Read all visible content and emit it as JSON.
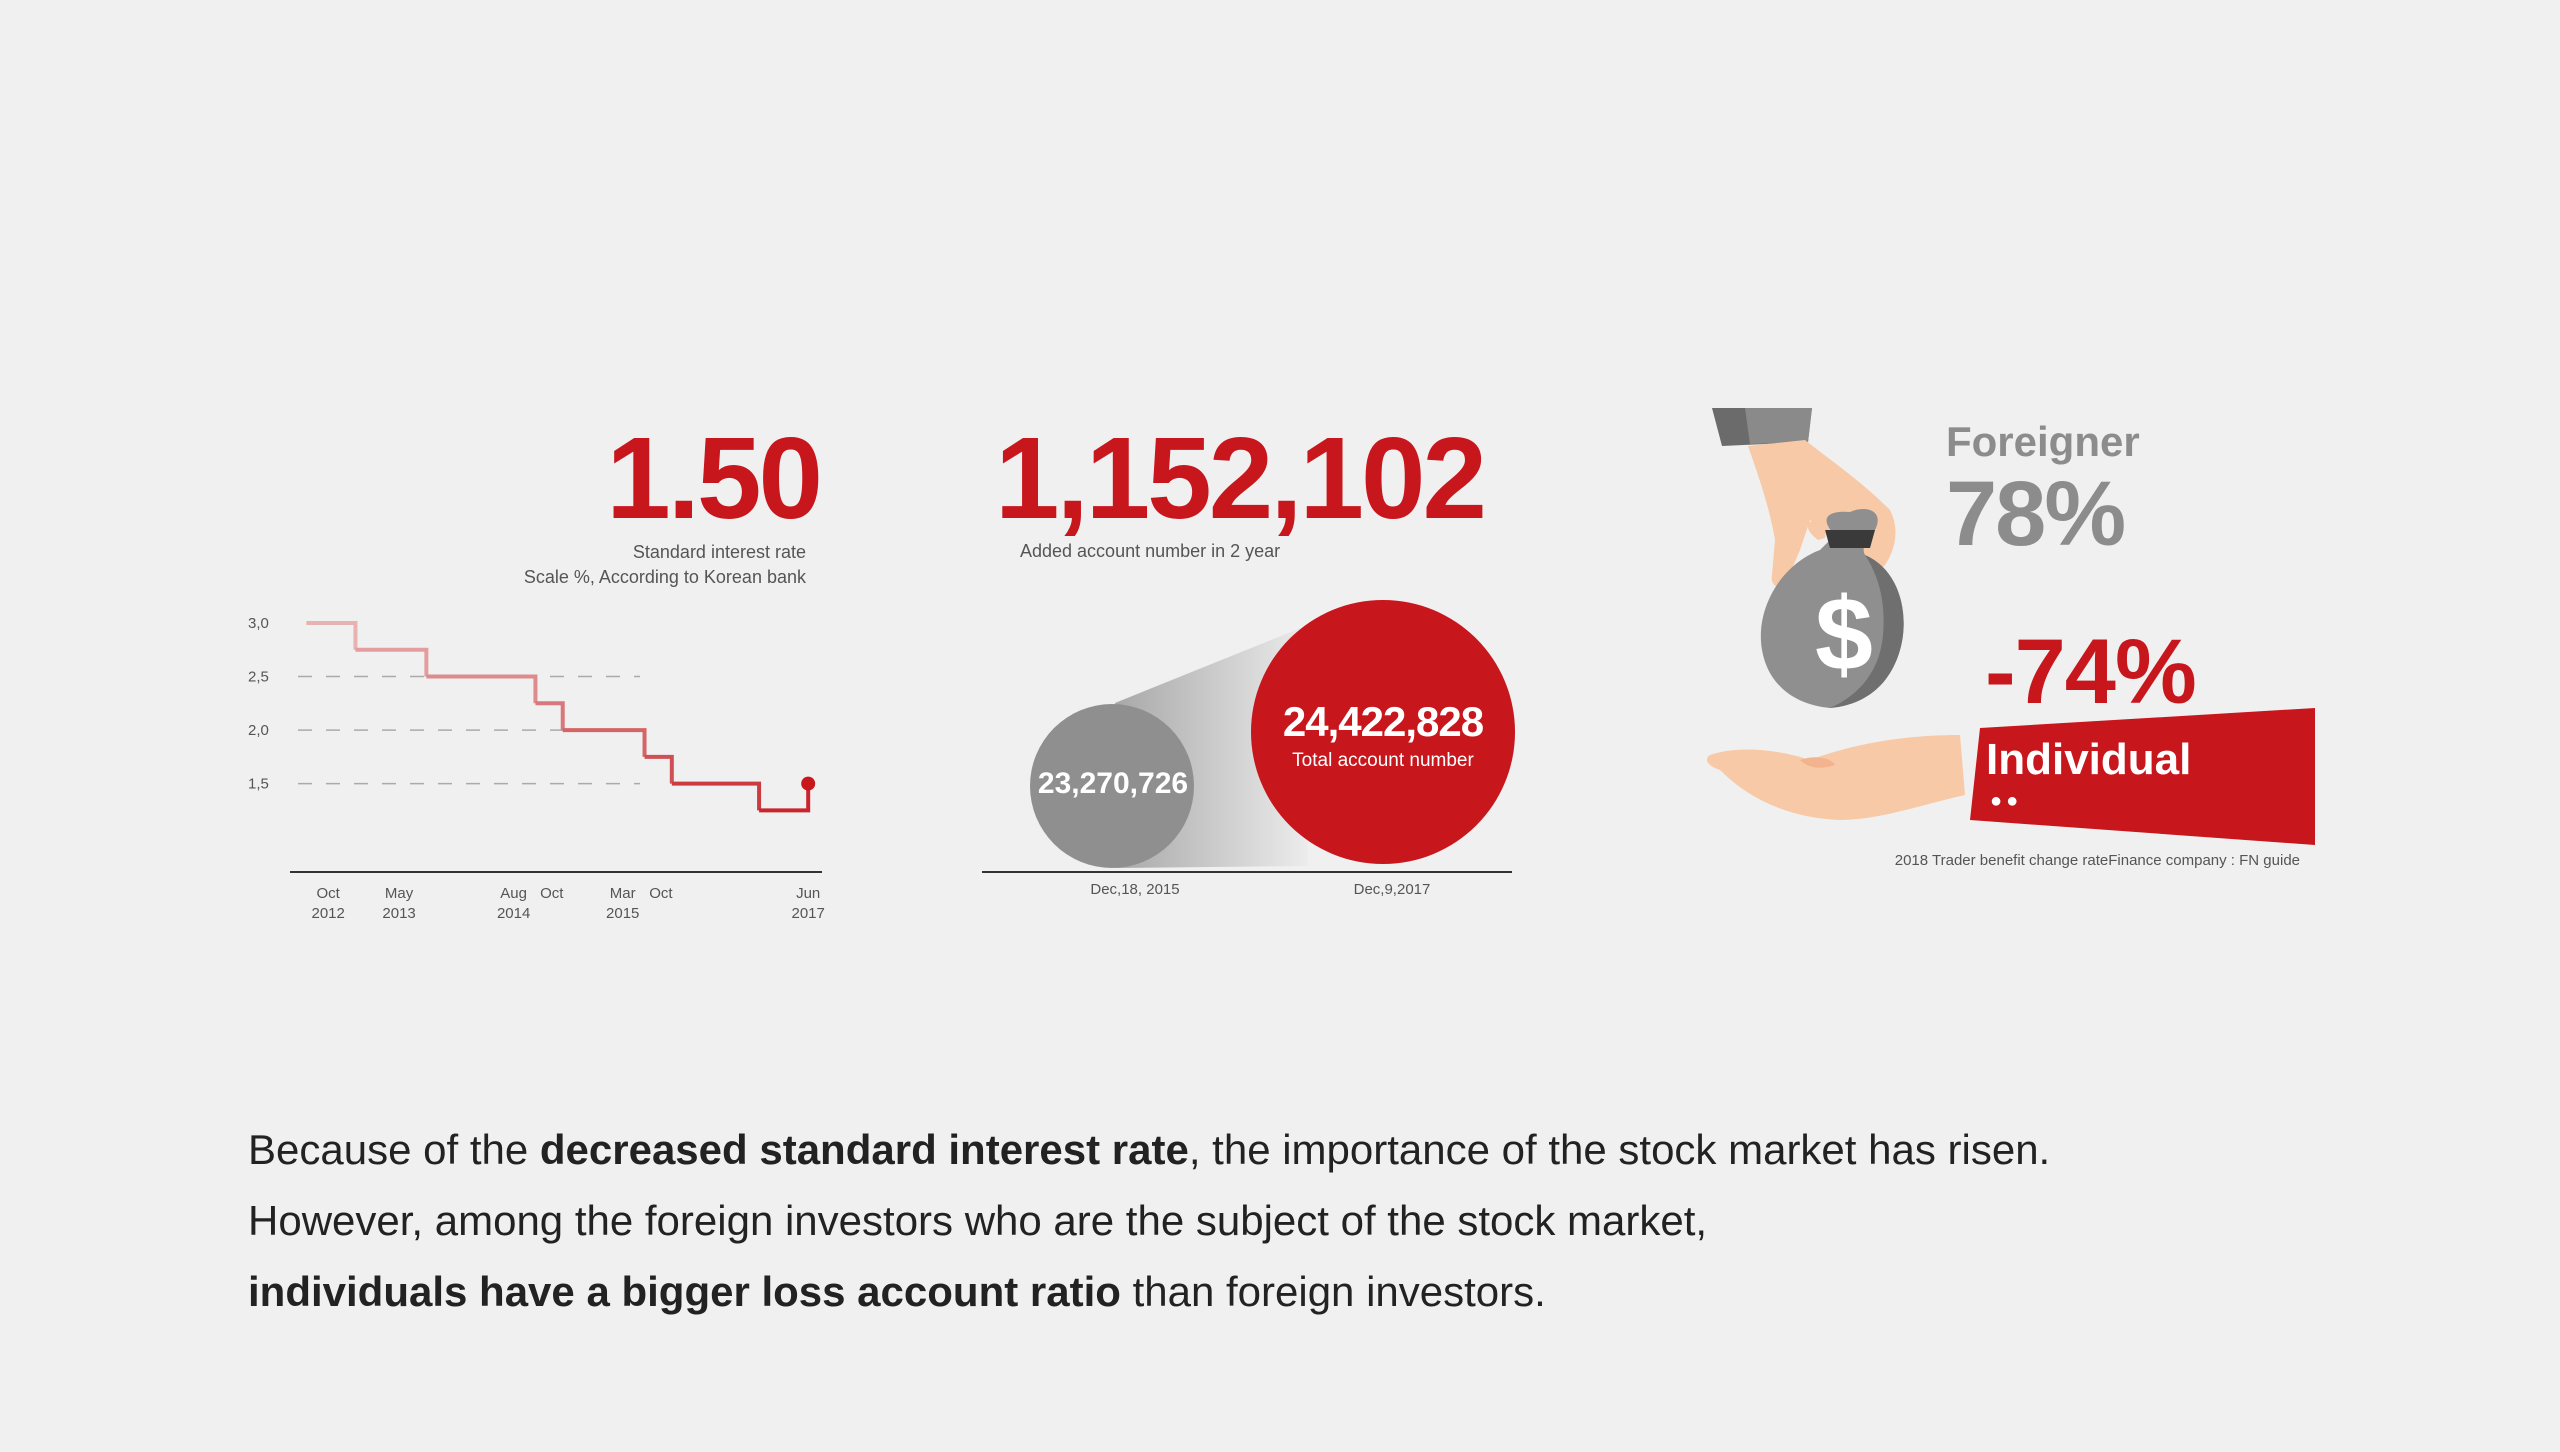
{
  "left_panel": {
    "headline": "1.50",
    "caption_line1": "Standard interest rate",
    "caption_line2": "Scale %, According to Korean bank"
  },
  "middle_panel": {
    "headline": "1,152,102",
    "caption": "Added account number in 2 year",
    "small_circle_value": "23,270,726",
    "big_circle_value": "24,422,828",
    "big_circle_label": "Total account number",
    "date_left": "Dec,18, 2015",
    "date_right": "Dec,9,2017"
  },
  "right_panel": {
    "foreigner_label": "Foreigner",
    "foreigner_value": "78%",
    "individual_value": "-74%",
    "individual_label": "Individual",
    "dots": "●●",
    "source": "2018 Trader benefit change rateFinance company : FN guide",
    "bag_symbol": "$"
  },
  "paragraph": {
    "l1_a": "Because of the ",
    "l1_b": "decreased standard interest rate",
    "l1_c": ", the importance of the stock market has risen.",
    "l2": "However, among the foreign investors who are the subject of the stock market,",
    "l3_a": "individuals have a bigger loss account ratio",
    "l3_b": " than foreign investors."
  },
  "colors": {
    "accent": "#c8161d",
    "grey": "#8c8c8c",
    "background": "#f0f0f0"
  },
  "chart_data": [
    {
      "type": "line",
      "step": true,
      "y_ticks": [
        "3,0",
        "2,5",
        "2,0",
        "1,5"
      ],
      "ylim": [
        1.0,
        3.0
      ],
      "x_labels": [
        {
          "top": "Oct",
          "bottom": "2012"
        },
        {
          "top": "May",
          "bottom": "2013"
        },
        {
          "top": "Aug",
          "bottom": "2014"
        },
        {
          "top": "Oct",
          "bottom": ""
        },
        {
          "top": "Mar",
          "bottom": "2015"
        },
        {
          "top": "Oct",
          "bottom": ""
        },
        {
          "top": "Jun",
          "bottom": "2017"
        }
      ],
      "points": [
        {
          "x": 0,
          "y": 3.0
        },
        {
          "x": 0.9,
          "y": 2.75
        },
        {
          "x": 2.2,
          "y": 2.5
        },
        {
          "x": 4.2,
          "y": 2.25
        },
        {
          "x": 4.7,
          "y": 2.0
        },
        {
          "x": 6.2,
          "y": 1.75
        },
        {
          "x": 6.7,
          "y": 1.5
        },
        {
          "x": 8.3,
          "y": 1.25
        },
        {
          "x": 9.2,
          "y": 1.5
        }
      ],
      "x_positions": [
        0.4,
        1.7,
        3.8,
        4.5,
        5.8,
        6.5,
        9.2
      ],
      "xlim": [
        -0.3,
        9.6
      ],
      "gridlines": [
        2.5,
        2.0,
        1.5
      ],
      "last_value": 1.5
    },
    {
      "type": "bar",
      "categories": [
        "Dec,18, 2015",
        "Dec,9,2017"
      ],
      "values": [
        23270726,
        24422828
      ]
    },
    {
      "type": "bar",
      "categories": [
        "Foreigner",
        "Individual"
      ],
      "values": [
        78,
        -74
      ],
      "unit": "%"
    }
  ]
}
